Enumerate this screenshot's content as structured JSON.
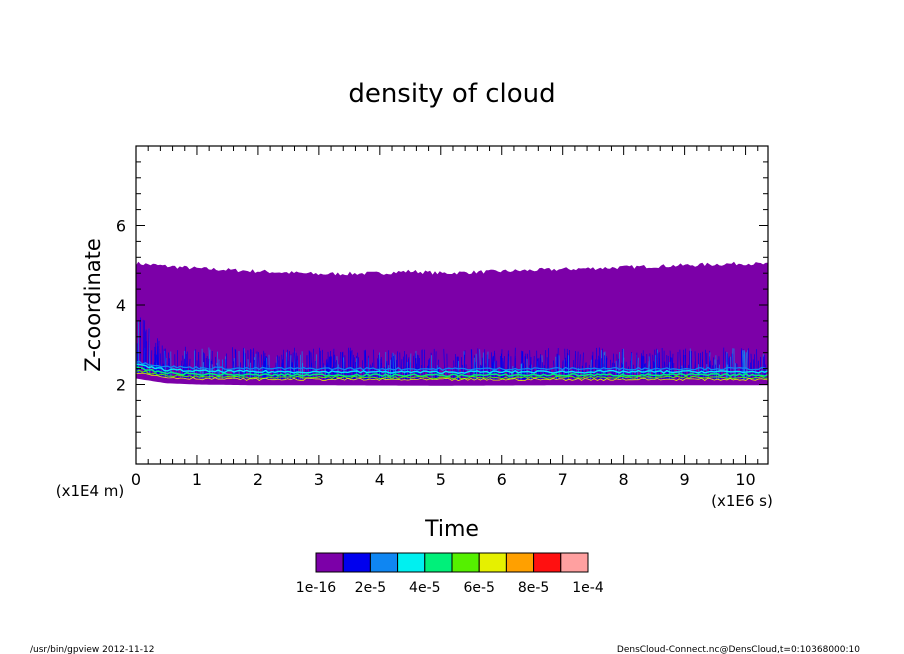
{
  "chart_data": {
    "type": "heatmap",
    "title": "density of cloud",
    "xlabel": "Time",
    "ylabel": "Z-coordinate",
    "x_unit": "(x1E6 s)",
    "y_unit": "(x1E4 m)",
    "xlim": [
      0,
      10.368
    ],
    "ylim": [
      0,
      8
    ],
    "x_ticks": [
      0,
      1,
      2,
      3,
      4,
      5,
      6,
      7,
      8,
      9,
      10
    ],
    "y_ticks": [
      2,
      4,
      6
    ],
    "cloud_top": [
      {
        "t": 0.0,
        "z": 5.05
      },
      {
        "t": 0.5,
        "z": 4.98
      },
      {
        "t": 1.0,
        "z": 4.92
      },
      {
        "t": 2.0,
        "z": 4.85
      },
      {
        "t": 3.0,
        "z": 4.78
      },
      {
        "t": 4.0,
        "z": 4.8
      },
      {
        "t": 4.5,
        "z": 4.85
      },
      {
        "t": 5.0,
        "z": 4.8
      },
      {
        "t": 6.0,
        "z": 4.85
      },
      {
        "t": 7.0,
        "z": 4.9
      },
      {
        "t": 8.0,
        "z": 4.95
      },
      {
        "t": 9.0,
        "z": 5.0
      },
      {
        "t": 10.0,
        "z": 5.05
      },
      {
        "t": 10.368,
        "z": 5.02
      }
    ],
    "cloud_base": [
      {
        "t": 0.0,
        "z": 2.15
      },
      {
        "t": 0.5,
        "z": 2.03
      },
      {
        "t": 1.0,
        "z": 2.0
      },
      {
        "t": 2.0,
        "z": 1.98
      },
      {
        "t": 3.0,
        "z": 1.98
      },
      {
        "t": 5.0,
        "z": 1.97
      },
      {
        "t": 7.0,
        "z": 1.98
      },
      {
        "t": 10.368,
        "z": 1.98
      }
    ],
    "colorbar": {
      "labels": [
        "1e-16",
        "2e-5",
        "4e-5",
        "6e-5",
        "8e-5",
        "1e-4"
      ],
      "colors": [
        "#7c00a8",
        "#0000ee",
        "#0f86f2",
        "#00f0f0",
        "#00f07a",
        "#55f000",
        "#e6f000",
        "#ffa000",
        "#ff1010",
        "#ffa0a0"
      ]
    }
  },
  "footer": {
    "left": "/usr/bin/gpview   2012-11-12",
    "right": "DensCloud-Connect.nc@DensCloud,t=0:10368000:10"
  }
}
